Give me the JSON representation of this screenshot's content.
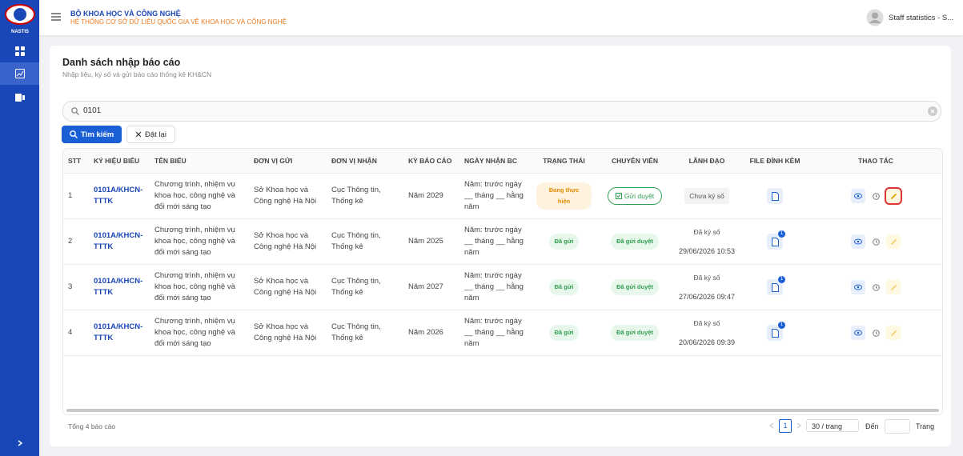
{
  "header": {
    "logo": "NASTIS",
    "org": "BỘ KHOA HỌC VÀ CÔNG NGHỆ",
    "system": "HỆ THỐNG CƠ SỞ DỮ LIỆU QUỐC GIA VỀ KHOA HỌC VÀ CÔNG NGHỆ",
    "user": "Staff statistics - S..."
  },
  "page": {
    "title": "Danh sách nhập báo cáo",
    "subtitle": "Nhập liệu, ký số và gửi báo cáo thống kê KH&CN"
  },
  "search": {
    "value": "0101",
    "search_button": "Tìm kiếm",
    "reset_button": "Đặt lại"
  },
  "table": {
    "columns": [
      "STT",
      "KÝ HIỆU BIỂU",
      "TÊN BIỂU",
      "ĐƠN VỊ GỬI",
      "ĐƠN VỊ NHẬN",
      "KỲ BÁO CÁO",
      "NGÀY NHẬN BC",
      "TRẠNG THÁI",
      "CHUYÊN VIÊN",
      "LÃNH ĐẠO",
      "FILE ĐÍNH KÈM",
      "THAO TÁC"
    ],
    "rows": [
      {
        "stt": "1",
        "code": "0101A/KHCN-TTTK",
        "name": "Chương trình, nhiệm vụ khoa học, công nghệ và đổi mới sáng tạo",
        "sender": "Sở Khoa học và Công nghệ Hà Nội",
        "receiver": "Cục Thông tin, Thống kê",
        "period": "Năm 2029",
        "deadline": "Năm: trước ngày __ tháng __ hằng năm",
        "status": "Đang thực hiện",
        "officer": "Gửi duyệt",
        "leader": "Chưa ký số"
      },
      {
        "stt": "2",
        "code": "0101A/KHCN-TTTK",
        "name": "Chương trình, nhiệm vụ khoa học, công nghệ và đổi mới sáng tạo",
        "sender": "Sở Khoa học và Công nghệ Hà Nội",
        "receiver": "Cục Thông tin, Thống kê",
        "period": "Năm 2025",
        "deadline": "Năm: trước ngày __ tháng __ hằng năm",
        "status": "Đã gửi",
        "officer": "Đã gửi duyệt",
        "leader": "Đã ký số",
        "signed_at": "29/06/2026 10:53",
        "attachments": "1"
      },
      {
        "stt": "3",
        "code": "0101A/KHCN-TTTK",
        "name": "Chương trình, nhiệm vụ khoa học, công nghệ và đổi mới sáng tạo",
        "sender": "Sở Khoa học và Công nghệ Hà Nội",
        "receiver": "Cục Thông tin, Thống kê",
        "period": "Năm 2027",
        "deadline": "Năm: trước ngày __ tháng __ hằng năm",
        "status": "Đã gửi",
        "officer": "Đã gửi duyệt",
        "leader": "Đã ký số",
        "signed_at": "27/06/2026 09:47",
        "attachments": "1"
      },
      {
        "stt": "4",
        "code": "0101A/KHCN-TTTK",
        "name": "Chương trình, nhiệm vụ khoa học, công nghệ và đổi mới sáng tạo",
        "sender": "Sở Khoa học và Công nghệ Hà Nội",
        "receiver": "Cục Thông tin, Thống kê",
        "period": "Năm 2026",
        "deadline": "Năm: trước ngày __ tháng __ hằng năm",
        "status": "Đã gửi",
        "officer": "Đã gửi duyệt",
        "leader": "Đã ký số",
        "signed_at": "20/06/2026 09:39",
        "attachments": "1"
      }
    ]
  },
  "footer": {
    "total": "Tổng 4 báo cáo",
    "page": "1",
    "page_size": "30 / trang",
    "goto": "Đến",
    "goto_suffix": "Trang"
  }
}
